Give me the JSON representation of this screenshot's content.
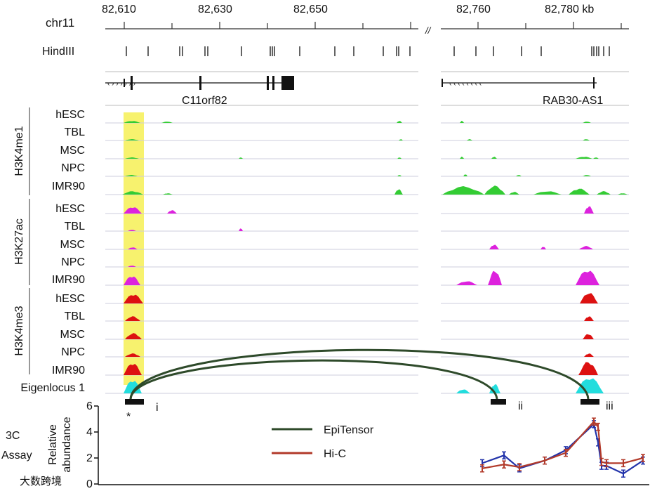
{
  "chrom_label": "chr11",
  "coordinates": {
    "left": [
      "82,610",
      "82,630",
      "82,650"
    ],
    "right": [
      "82,760",
      "82,780 kb"
    ],
    "break_mark": "//"
  },
  "hindiii_label": "HindIII",
  "genes": [
    "C11orf82",
    "RAB30-AS1"
  ],
  "marks": [
    "H3K4me1",
    "H3K27ac",
    "H3K4me3"
  ],
  "cell_lines": [
    "hESC",
    "TBL",
    "MSC",
    "NPC",
    "IMR90"
  ],
  "eigenlocus_label": "Eigenlocus 1",
  "fragments": {
    "star": "*",
    "labels": [
      "i",
      "ii",
      "iii"
    ]
  },
  "assay": {
    "label_line1": "3C",
    "label_line2": "Assay",
    "ylabel_line1": "Relative",
    "ylabel_line2": "abundance",
    "yticks": [
      "6",
      "4",
      "2",
      "0"
    ]
  },
  "legend": {
    "epitensor": "EpiTensor",
    "hic": "Hi-C"
  },
  "colors": {
    "h3k4me1": "#33cc33",
    "h3k27ac": "#dd22dd",
    "h3k4me3": "#dd1111",
    "eigen": "#22dddd",
    "highlight": "#f7f26e",
    "epitensor": "#2e4a2a",
    "hic": "#b23a2a",
    "blue": "#2233aa"
  },
  "watermark": "大数跨境"
}
